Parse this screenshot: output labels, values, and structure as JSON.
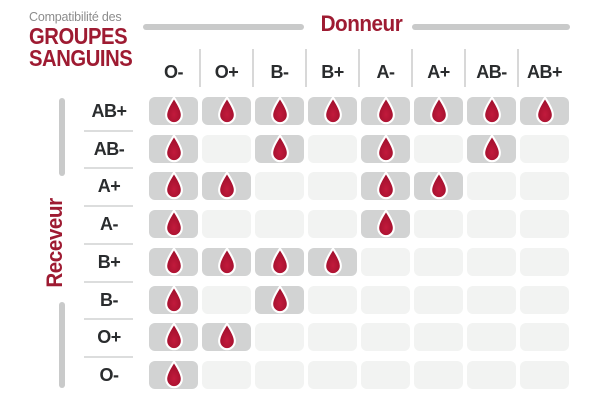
{
  "title": {
    "kicker": "Compatibilité des",
    "line1": "GROUPES",
    "line2": "SANGUINS"
  },
  "donor_axis": {
    "label": "Donneur"
  },
  "receiver_axis": {
    "label": "Receveur"
  },
  "icons": {
    "compatible": "blood-drop-icon"
  },
  "colors": {
    "accent_red": "#9E1B32",
    "drop_red_light": "#C21A3C",
    "drop_red_dark": "#9C0E2A",
    "cell_active": "#D2D3D3",
    "cell_inactive": "#F2F3F2",
    "axis_line_gray": "#C9CACA",
    "label_dark": "#2A2C2E",
    "kicker_gray": "#8C8C8C"
  },
  "chart_data": {
    "type": "heatmap",
    "title": "Compatibilité des groupes sanguins",
    "x_label": "Donneur",
    "y_label": "Receveur",
    "columns": [
      "O-",
      "O+",
      "B-",
      "B+",
      "A-",
      "A+",
      "AB-",
      "AB+"
    ],
    "rows": [
      "AB+",
      "AB-",
      "A+",
      "A-",
      "B+",
      "B-",
      "O+",
      "O-"
    ],
    "values": [
      [
        1,
        1,
        1,
        1,
        1,
        1,
        1,
        1
      ],
      [
        1,
        0,
        1,
        0,
        1,
        0,
        1,
        0
      ],
      [
        1,
        1,
        0,
        0,
        1,
        1,
        0,
        0
      ],
      [
        1,
        0,
        0,
        0,
        1,
        0,
        0,
        0
      ],
      [
        1,
        1,
        1,
        1,
        0,
        0,
        0,
        0
      ],
      [
        1,
        0,
        1,
        0,
        0,
        0,
        0,
        0
      ],
      [
        1,
        1,
        0,
        0,
        0,
        0,
        0,
        0
      ],
      [
        1,
        0,
        0,
        0,
        0,
        0,
        0,
        0
      ]
    ],
    "legend": "1 = compatible (goutte de sang rouge affichée), 0 = incompatible (case gris clair vide)"
  }
}
